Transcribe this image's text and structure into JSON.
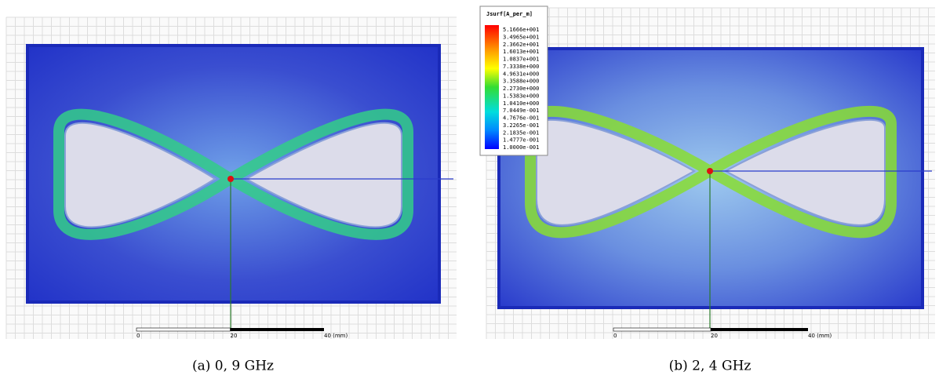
{
  "panels": [
    {
      "caption": "(a) 0, 9 GHz",
      "scale": [
        "0",
        "20",
        "40 (mm)"
      ]
    },
    {
      "caption": "(b) 2, 4 GHz",
      "scale": [
        "0",
        "20",
        "40 (mm)"
      ],
      "legend": {
        "title": "Jsurf[A_per_m]",
        "labels": [
          "5.1666e+001",
          "3.4965e+001",
          "2.3662e+001",
          "1.6013e+001",
          "1.0837e+001",
          "7.3338e+000",
          "4.9631e+000",
          "3.3588e+000",
          "2.2730e+000",
          "1.5383e+000",
          "1.0410e+000",
          "7.0449e-001",
          "4.7676e-001",
          "3.2265e-001",
          "2.1835e-001",
          "1.4777e-001",
          "1.0000e-001"
        ]
      }
    }
  ]
}
